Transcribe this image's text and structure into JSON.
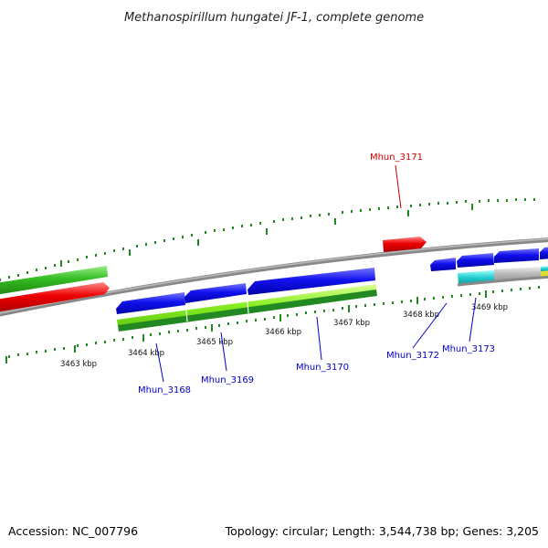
{
  "title": "Methanospirillum hungatei JF-1, complete genome",
  "accession": "Accession: NC_007796",
  "summary": "Topology: circular; Length: 3,544,738 bp; Genes: 3,205",
  "scale_labels": [
    "3463 kbp",
    "3464 kbp",
    "3465 kbp",
    "3466 kbp",
    "3467 kbp",
    "3468 kbp",
    "3469 kbp"
  ],
  "gene_labels": [
    {
      "id": "mhun3171",
      "text": "Mhun_3171",
      "color": "#cc0000"
    },
    {
      "id": "mhun3168",
      "text": "Mhun_3168",
      "color": "#0000cc"
    },
    {
      "id": "mhun3169",
      "text": "Mhun_3169",
      "color": "#0000cc"
    },
    {
      "id": "mhun3170",
      "text": "Mhun_3170",
      "color": "#0000cc"
    },
    {
      "id": "mhun3172",
      "text": "Mhun_3172",
      "color": "#0000cc"
    },
    {
      "id": "mhun3173",
      "text": "Mhun_3173",
      "color": "#0000cc"
    }
  ],
  "colors": {
    "forward_cds": "#ee0000",
    "forward_other": "#33bb22",
    "reverse_cds": "#1111ee",
    "reverse_rna": "#88ee22",
    "reverse_dark": "#228822",
    "cyan": "#22cccc",
    "grey_feature": "#bbbbbb",
    "backbone": "#888888",
    "ticks": "#228822"
  }
}
